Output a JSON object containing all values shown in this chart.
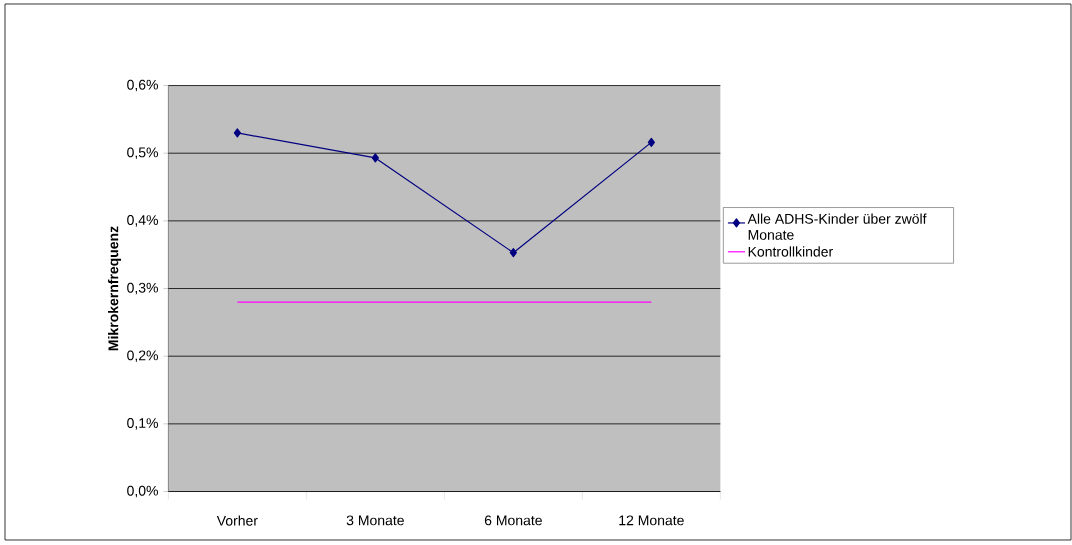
{
  "chart_data": {
    "type": "line",
    "ylabel": "Mikrokernfrequenz",
    "categories": [
      "Vorher",
      "3 Monate",
      "6 Monate",
      "12 Monate"
    ],
    "series": [
      {
        "name": "Alle ADHS-Kinder über zwölf Monate",
        "color": "#000080",
        "values": [
          0.53,
          0.493,
          0.353,
          0.516
        ],
        "marker": "diamond"
      },
      {
        "name": "Kontrollkinder",
        "color": "#ff00ff",
        "values": [
          0.28,
          0.28,
          0.28,
          0.28
        ],
        "marker": "none"
      }
    ],
    "ylim": [
      0,
      0.6
    ],
    "yticks": [
      {
        "value": 0,
        "label": "0,0%"
      },
      {
        "value": 0.1,
        "label": "0,1%"
      },
      {
        "value": 0.2,
        "label": "0,2%"
      },
      {
        "value": 0.3,
        "label": "0,3%"
      },
      {
        "value": 0.4,
        "label": "0,4%"
      },
      {
        "value": 0.5,
        "label": "0,5%"
      },
      {
        "value": 0.6,
        "label": "0,6%"
      }
    ],
    "grid": "y",
    "legend": "right",
    "line_style": "solid"
  }
}
